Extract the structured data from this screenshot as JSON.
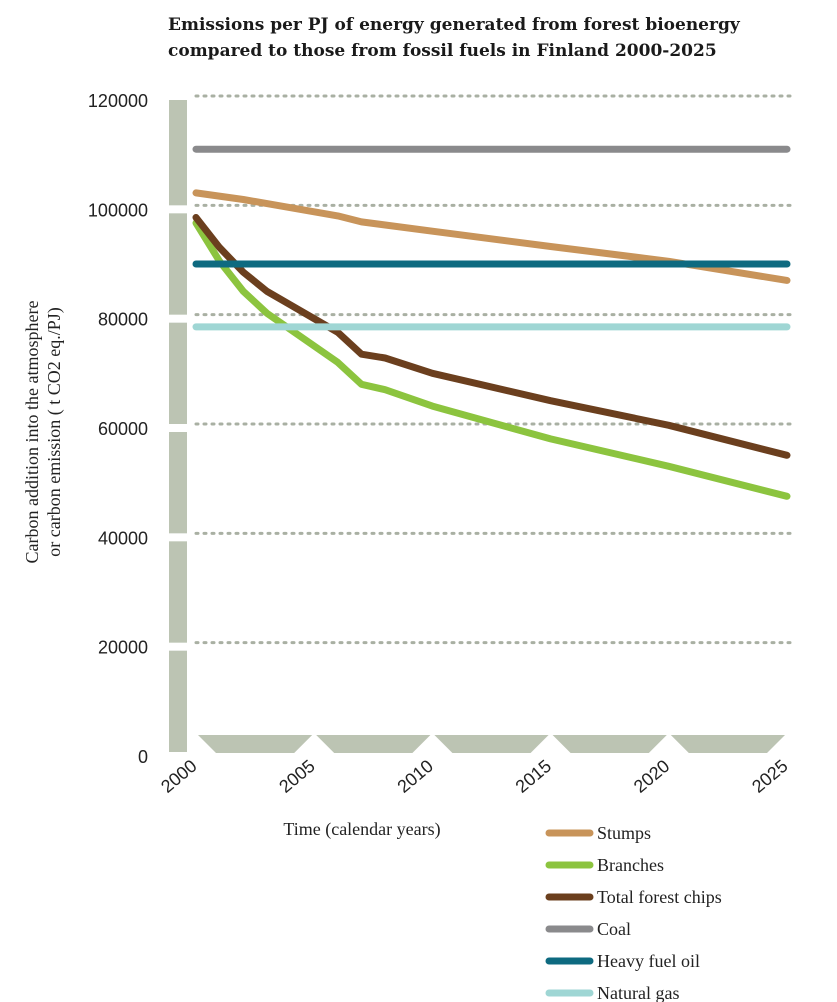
{
  "chart_data": {
    "type": "line",
    "title_line1": "Emissions per PJ of energy generated from forest bioenergy",
    "title_line2": "compared to those from fossil fuels in Finland 2000-2025",
    "xlabel": "Time (calendar years)",
    "ylabel_line1": "Carbon addition into the atmosphere",
    "ylabel_line2": "or carbon emission ( t CO2 eq./PJ)",
    "xlim": [
      2000,
      2025
    ],
    "ylim": [
      0,
      120000
    ],
    "x_ticks": [
      "2000",
      "2005",
      "2010",
      "2015",
      "2020",
      "2025"
    ],
    "y_ticks": [
      "0",
      "20000",
      "40000",
      "60000",
      "80000",
      "100000",
      "120000"
    ],
    "grid": "horizontal dotted",
    "legend_position": "bottom-right",
    "series": [
      {
        "name": "Stumps",
        "color": "#c8945a",
        "x": [
          2000,
          2002,
          2004,
          2006,
          2007,
          2010,
          2015,
          2020,
          2025
        ],
        "y": [
          103000,
          101800,
          100300,
          98800,
          97700,
          96000,
          93200,
          90500,
          87000
        ]
      },
      {
        "name": "Branches",
        "color": "#8cc43f",
        "x": [
          2000,
          2001,
          2002,
          2003,
          2004,
          2005,
          2006,
          2007,
          2008,
          2010,
          2015,
          2020,
          2025
        ],
        "y": [
          97500,
          90500,
          85000,
          81000,
          78000,
          75000,
          72000,
          68000,
          67000,
          64000,
          58000,
          53000,
          47500
        ]
      },
      {
        "name": "Total forest chips",
        "color": "#6b3f1e",
        "x": [
          2000,
          2001,
          2002,
          2003,
          2004,
          2005,
          2006,
          2007,
          2008,
          2010,
          2015,
          2020,
          2025
        ],
        "y": [
          98500,
          93000,
          88500,
          85000,
          82500,
          80000,
          77500,
          73500,
          72800,
          70000,
          65000,
          60500,
          55000
        ]
      },
      {
        "name": "Coal",
        "color": "#8a8a8c",
        "x": [
          2000,
          2025
        ],
        "y": [
          111000,
          111000
        ]
      },
      {
        "name": "Heavy fuel oil",
        "color": "#0e6a80",
        "x": [
          2000,
          2025
        ],
        "y": [
          90000,
          90000
        ]
      },
      {
        "name": "Natural gas",
        "color": "#9fd6d4",
        "x": [
          2000,
          2025
        ],
        "y": [
          78500,
          78500
        ]
      }
    ]
  }
}
